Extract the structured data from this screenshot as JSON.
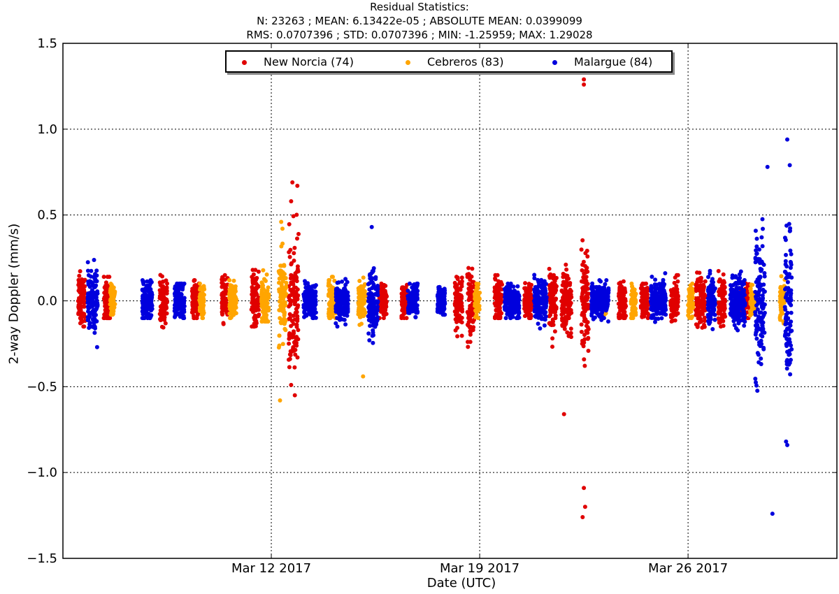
{
  "chart_data": {
    "type": "scatter",
    "title": "Residual Statistics:",
    "subtitle_lines": [
      "N: 23263 ; MEAN: 6.13422e-05 ; ABSOLUTE MEAN: 0.0399099",
      "RMS: 0.0707396 ; STD: 0.0707396 ; MIN: -1.25959; MAX: 1.29028"
    ],
    "xlabel": "Date (UTC)",
    "ylabel": "2-way Doppler (mm/s)",
    "x_type": "date",
    "xlim": [
      "2017-03-05T00:00",
      "2017-03-31T00:00"
    ],
    "ylim": [
      -1.5,
      1.5
    ],
    "x_ticks": [
      {
        "date": "2017-03-12",
        "label": "Mar 12 2017"
      },
      {
        "date": "2017-03-19",
        "label": "Mar 19 2017"
      },
      {
        "date": "2017-03-26",
        "label": "Mar 26 2017"
      }
    ],
    "y_ticks": [
      {
        "value": -1.5,
        "label": "−1.5"
      },
      {
        "value": -1.0,
        "label": "−1.0"
      },
      {
        "value": -0.5,
        "label": "−0.5"
      },
      {
        "value": 0.0,
        "label": "0.0"
      },
      {
        "value": 0.5,
        "label": "0.5"
      },
      {
        "value": 1.0,
        "label": "1.0"
      },
      {
        "value": 1.5,
        "label": "1.5"
      }
    ],
    "grid": true,
    "legend_position": "top-center",
    "series": [
      {
        "name": "New Norcia (74)",
        "color": "#e00000",
        "passes": [
          {
            "start": "2017-03-05T12:00",
            "end": "2017-03-05T18:00",
            "spread": 0.08,
            "max": 0.2,
            "min": -0.15
          },
          {
            "start": "2017-03-06T09:00",
            "end": "2017-03-06T14:00",
            "spread": 0.08,
            "max": 0.14,
            "min": -0.1
          },
          {
            "start": "2017-03-08T06:00",
            "end": "2017-03-08T12:00",
            "spread": 0.07,
            "max": 0.24,
            "min": -0.2
          },
          {
            "start": "2017-03-09T08:00",
            "end": "2017-03-09T14:00",
            "spread": 0.06,
            "max": 0.12,
            "min": -0.1
          },
          {
            "start": "2017-03-10T08:00",
            "end": "2017-03-10T13:00",
            "spread": 0.07,
            "max": 0.15,
            "min": -0.2
          },
          {
            "start": "2017-03-11T08:00",
            "end": "2017-03-11T14:00",
            "spread": 0.08,
            "max": 0.18,
            "min": -0.15
          },
          {
            "start": "2017-03-12T14:00",
            "end": "2017-03-12T22:00",
            "spread": 0.18,
            "max": 0.69,
            "min": -0.59
          },
          {
            "start": "2017-03-15T15:00",
            "end": "2017-03-15T21:00",
            "spread": 0.05,
            "max": 0.1,
            "min": -0.1
          },
          {
            "start": "2017-03-16T09:00",
            "end": "2017-03-16T14:00",
            "spread": 0.05,
            "max": 0.1,
            "min": -0.1
          },
          {
            "start": "2017-03-18T04:00",
            "end": "2017-03-18T10:00",
            "spread": 0.07,
            "max": 0.2,
            "min": -0.25
          },
          {
            "start": "2017-03-18T14:00",
            "end": "2017-03-18T20:00",
            "spread": 0.1,
            "max": 0.37,
            "min": -0.3
          },
          {
            "start": "2017-03-19T12:00",
            "end": "2017-03-19T18:00",
            "spread": 0.06,
            "max": 0.15,
            "min": -0.1
          },
          {
            "start": "2017-03-20T12:00",
            "end": "2017-03-20T18:00",
            "spread": 0.05,
            "max": 0.12,
            "min": -0.1
          },
          {
            "start": "2017-03-21T08:00",
            "end": "2017-03-21T14:00",
            "spread": 0.1,
            "max": 0.4,
            "min": -0.43
          },
          {
            "start": "2017-03-21T18:00",
            "end": "2017-03-22T02:00",
            "spread": 0.09,
            "max": 0.38,
            "min": -0.66
          },
          {
            "start": "2017-03-22T10:00",
            "end": "2017-03-22T16:00",
            "spread": 0.14,
            "max": 0.5,
            "min": -0.6
          },
          {
            "start": "2017-03-23T16:00",
            "end": "2017-03-23T22:00",
            "spread": 0.06,
            "max": 0.22,
            "min": -0.1
          },
          {
            "start": "2017-03-24T10:00",
            "end": "2017-03-24T16:00",
            "spread": 0.05,
            "max": 0.1,
            "min": -0.1
          },
          {
            "start": "2017-03-25T10:00",
            "end": "2017-03-25T16:00",
            "spread": 0.06,
            "max": 0.15,
            "min": -0.12
          },
          {
            "start": "2017-03-26T06:00",
            "end": "2017-03-26T14:00",
            "spread": 0.07,
            "max": 0.3,
            "min": -0.22
          },
          {
            "start": "2017-03-27T00:00",
            "end": "2017-03-27T06:00",
            "spread": 0.06,
            "max": 0.2,
            "min": -0.15
          },
          {
            "start": "2017-03-27T18:00",
            "end": "2017-03-28T02:00",
            "spread": 0.05,
            "max": 0.1,
            "min": -0.1
          }
        ],
        "outliers": [
          {
            "x": "2017-03-12T17:00",
            "y": 0.69
          },
          {
            "x": "2017-03-12T21:00",
            "y": 0.67
          },
          {
            "x": "2017-03-12T16:00",
            "y": 0.58
          },
          {
            "x": "2017-03-12T16:00",
            "y": -0.49
          },
          {
            "x": "2017-03-12T19:00",
            "y": -0.55
          },
          {
            "x": "2017-03-22T12:00",
            "y": 1.29
          },
          {
            "x": "2017-03-22T12:00",
            "y": 1.26
          },
          {
            "x": "2017-03-22T12:00",
            "y": -1.09
          },
          {
            "x": "2017-03-22T13:00",
            "y": -1.2
          },
          {
            "x": "2017-03-22T11:00",
            "y": -1.26
          },
          {
            "x": "2017-03-21T20:00",
            "y": -0.66
          }
        ]
      },
      {
        "name": "Cebreros (83)",
        "color": "#ffa500",
        "passes": [
          {
            "start": "2017-03-06T14:00",
            "end": "2017-03-06T18:00",
            "spread": 0.05,
            "max": 0.1,
            "min": -0.08
          },
          {
            "start": "2017-03-09T14:00",
            "end": "2017-03-09T18:00",
            "spread": 0.06,
            "max": 0.12,
            "min": -0.1
          },
          {
            "start": "2017-03-10T14:00",
            "end": "2017-03-10T20:00",
            "spread": 0.06,
            "max": 0.12,
            "min": -0.1
          },
          {
            "start": "2017-03-11T16:00",
            "end": "2017-03-11T22:00",
            "spread": 0.07,
            "max": 0.2,
            "min": -0.12
          },
          {
            "start": "2017-03-12T06:00",
            "end": "2017-03-12T12:00",
            "spread": 0.12,
            "max": 0.46,
            "min": -0.58
          },
          {
            "start": "2017-03-13T22:00",
            "end": "2017-03-14T04:00",
            "spread": 0.06,
            "max": 0.14,
            "min": -0.1
          },
          {
            "start": "2017-03-14T22:00",
            "end": "2017-03-15T04:00",
            "spread": 0.06,
            "max": 0.2,
            "min": -0.44
          },
          {
            "start": "2017-03-18T20:00",
            "end": "2017-03-19T00:00",
            "spread": 0.05,
            "max": 0.1,
            "min": -0.1
          },
          {
            "start": "2017-03-23T02:00",
            "end": "2017-03-23T06:00",
            "spread": 0.05,
            "max": 0.1,
            "min": -0.1
          },
          {
            "start": "2017-03-24T02:00",
            "end": "2017-03-24T06:00",
            "spread": 0.05,
            "max": 0.1,
            "min": -0.1
          },
          {
            "start": "2017-03-26T00:00",
            "end": "2017-03-26T04:00",
            "spread": 0.05,
            "max": 0.1,
            "min": -0.1
          },
          {
            "start": "2017-03-28T02:00",
            "end": "2017-03-28T06:00",
            "spread": 0.05,
            "max": 0.12,
            "min": -0.1
          },
          {
            "start": "2017-03-29T02:00",
            "end": "2017-03-29T06:00",
            "spread": 0.06,
            "max": 0.18,
            "min": -0.15
          }
        ],
        "outliers": [
          {
            "x": "2017-03-12T08:00",
            "y": 0.46
          },
          {
            "x": "2017-03-12T09:00",
            "y": 0.42
          },
          {
            "x": "2017-03-12T07:00",
            "y": -0.58
          },
          {
            "x": "2017-03-15T02:00",
            "y": -0.44
          }
        ]
      },
      {
        "name": "Malargue (84)",
        "color": "#0000dd",
        "passes": [
          {
            "start": "2017-03-05T20:00",
            "end": "2017-03-06T04:00",
            "spread": 0.09,
            "max": 0.27,
            "min": -0.29
          },
          {
            "start": "2017-03-07T16:00",
            "end": "2017-03-08T00:00",
            "spread": 0.06,
            "max": 0.12,
            "min": -0.1
          },
          {
            "start": "2017-03-08T18:00",
            "end": "2017-03-09T02:00",
            "spread": 0.05,
            "max": 0.1,
            "min": -0.1
          },
          {
            "start": "2017-03-13T02:00",
            "end": "2017-03-13T12:00",
            "spread": 0.05,
            "max": 0.12,
            "min": -0.1
          },
          {
            "start": "2017-03-14T04:00",
            "end": "2017-03-14T14:00",
            "spread": 0.06,
            "max": 0.2,
            "min": -0.15
          },
          {
            "start": "2017-03-15T06:00",
            "end": "2017-03-15T14:00",
            "spread": 0.09,
            "max": 0.43,
            "min": -0.25
          },
          {
            "start": "2017-03-16T14:00",
            "end": "2017-03-16T22:00",
            "spread": 0.05,
            "max": 0.1,
            "min": -0.1
          },
          {
            "start": "2017-03-17T14:00",
            "end": "2017-03-17T20:00",
            "spread": 0.04,
            "max": 0.08,
            "min": -0.08
          },
          {
            "start": "2017-03-19T20:00",
            "end": "2017-03-20T08:00",
            "spread": 0.05,
            "max": 0.1,
            "min": -0.1
          },
          {
            "start": "2017-03-20T20:00",
            "end": "2017-03-21T06:00",
            "spread": 0.06,
            "max": 0.2,
            "min": -0.35
          },
          {
            "start": "2017-03-22T18:00",
            "end": "2017-03-23T08:00",
            "spread": 0.05,
            "max": 0.12,
            "min": -0.12
          },
          {
            "start": "2017-03-24T18:00",
            "end": "2017-03-25T06:00",
            "spread": 0.05,
            "max": 0.28,
            "min": -0.2
          },
          {
            "start": "2017-03-26T16:00",
            "end": "2017-03-26T22:00",
            "spread": 0.07,
            "max": 0.41,
            "min": -0.3
          },
          {
            "start": "2017-03-27T10:00",
            "end": "2017-03-27T22:00",
            "spread": 0.07,
            "max": 0.2,
            "min": -0.25
          },
          {
            "start": "2017-03-28T06:00",
            "end": "2017-03-28T14:00",
            "spread": 0.2,
            "max": 0.78,
            "min": -0.6
          },
          {
            "start": "2017-03-29T06:00",
            "end": "2017-03-29T12:00",
            "spread": 0.22,
            "max": 0.94,
            "min": -0.85
          }
        ],
        "outliers": [
          {
            "x": "2017-03-29T08:00",
            "y": 0.94
          },
          {
            "x": "2017-03-28T16:00",
            "y": 0.78
          },
          {
            "x": "2017-03-29T10:00",
            "y": 0.79
          },
          {
            "x": "2017-03-29T08:00",
            "y": -0.84
          },
          {
            "x": "2017-03-29T07:00",
            "y": -0.82
          },
          {
            "x": "2017-03-28T20:00",
            "y": -1.24
          },
          {
            "x": "2017-03-15T09:00",
            "y": 0.43
          }
        ]
      }
    ]
  }
}
